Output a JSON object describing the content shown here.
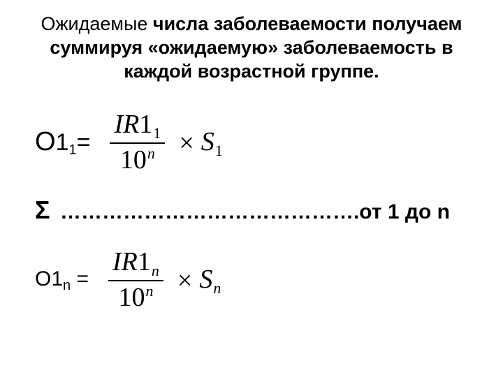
{
  "colors": {
    "text": "#000000",
    "background": "#ffffff"
  },
  "title": {
    "part1_thin": "Ожидаемые",
    "part2_bold": " числа заболеваемости получаем суммируя «ожидаемую» заболеваемость в каждой возрастной группе."
  },
  "formula1": {
    "lhs_big": "О",
    "lhs_rest": "1",
    "lhs_sub": "1",
    "lhs_eq": "=",
    "num_var": "IR",
    "num_rest": "1",
    "num_sub": "1",
    "den_base": "10",
    "den_sup": "n",
    "times": "×",
    "rhs_var": "S",
    "rhs_sub": "1"
  },
  "sigma_line": {
    "sigma": "Σ",
    "dots": " …………………………………….",
    "tail": "от 1 до n"
  },
  "formula2": {
    "lhs_big": "О",
    "lhs_rest": "1",
    "lhs_sub": "n",
    "lhs_eq": " =",
    "num_var": "IR",
    "num_rest": "1",
    "num_sub": "n",
    "den_base": "10",
    "den_sup": "n",
    "times": "×",
    "rhs_var": "S",
    "rhs_sub": "n"
  }
}
